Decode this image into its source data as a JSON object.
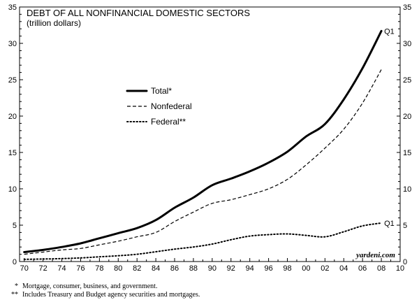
{
  "chart_data": {
    "type": "line",
    "title": "DEBT OF ALL NONFINANCIAL DOMESTIC SECTORS",
    "subtitle": "(trillion dollars)",
    "xlim": [
      1969.5,
      2010
    ],
    "ylim": [
      0,
      35
    ],
    "x_ticks": [
      1970,
      1972,
      1974,
      1976,
      1978,
      1980,
      1982,
      1984,
      1986,
      1988,
      1990,
      1992,
      1994,
      1996,
      1998,
      2000,
      2002,
      2004,
      2006,
      2008,
      2010
    ],
    "x_tick_labels": [
      "70",
      "72",
      "74",
      "76",
      "78",
      "80",
      "82",
      "84",
      "86",
      "88",
      "90",
      "92",
      "94",
      "96",
      "98",
      "00",
      "02",
      "04",
      "06",
      "08",
      "10"
    ],
    "y_ticks": [
      0,
      5,
      10,
      15,
      20,
      25,
      30,
      35
    ],
    "y_tick_labels": [
      "0",
      "5",
      "10",
      "15",
      "20",
      "25",
      "30",
      "35"
    ],
    "grid": false,
    "legend_position": "upper-left-center",
    "series": [
      {
        "name": "Total*",
        "style": "solid-thick",
        "color": "#000000",
        "x": [
          1970,
          1972,
          1974,
          1976,
          1978,
          1980,
          1982,
          1984,
          1986,
          1988,
          1990,
          1992,
          1994,
          1996,
          1998,
          2000,
          2002,
          2004,
          2006,
          2008
        ],
        "values": [
          1.3,
          1.6,
          2.0,
          2.5,
          3.2,
          3.9,
          4.6,
          5.7,
          7.4,
          8.8,
          10.5,
          11.4,
          12.4,
          13.6,
          15.1,
          17.2,
          18.9,
          22.3,
          26.6,
          31.7
        ]
      },
      {
        "name": "Nonfederal",
        "style": "dashed",
        "color": "#000000",
        "x": [
          1970,
          1972,
          1974,
          1976,
          1978,
          1980,
          1982,
          1984,
          1986,
          1988,
          1990,
          1992,
          1994,
          1996,
          1998,
          2000,
          2002,
          2004,
          2006,
          2008
        ],
        "values": [
          1.0,
          1.3,
          1.6,
          1.8,
          2.3,
          2.8,
          3.4,
          4.0,
          5.5,
          6.8,
          8.0,
          8.5,
          9.2,
          10.0,
          11.3,
          13.3,
          15.6,
          18.2,
          21.8,
          26.4
        ]
      },
      {
        "name": "Federal**",
        "style": "dotted",
        "color": "#000000",
        "x": [
          1970,
          1972,
          1974,
          1976,
          1978,
          1980,
          1982,
          1984,
          1986,
          1988,
          1990,
          1992,
          1994,
          1996,
          1998,
          2000,
          2002,
          2004,
          2006,
          2008
        ],
        "values": [
          0.3,
          0.35,
          0.4,
          0.5,
          0.65,
          0.8,
          1.0,
          1.35,
          1.7,
          2.0,
          2.4,
          3.0,
          3.5,
          3.7,
          3.8,
          3.6,
          3.4,
          4.1,
          4.9,
          5.3
        ]
      }
    ],
    "annotations": [
      {
        "text": "Q1",
        "series": "Total*"
      },
      {
        "text": "Q1",
        "series": "Federal**"
      }
    ],
    "source_label": "yardeni.com"
  },
  "footnotes": [
    {
      "mark": "*",
      "text": "Mortgage, consumer, business, and government."
    },
    {
      "mark": "**",
      "text": "Includes Treasury and Budget agency securities and mortgages."
    }
  ]
}
